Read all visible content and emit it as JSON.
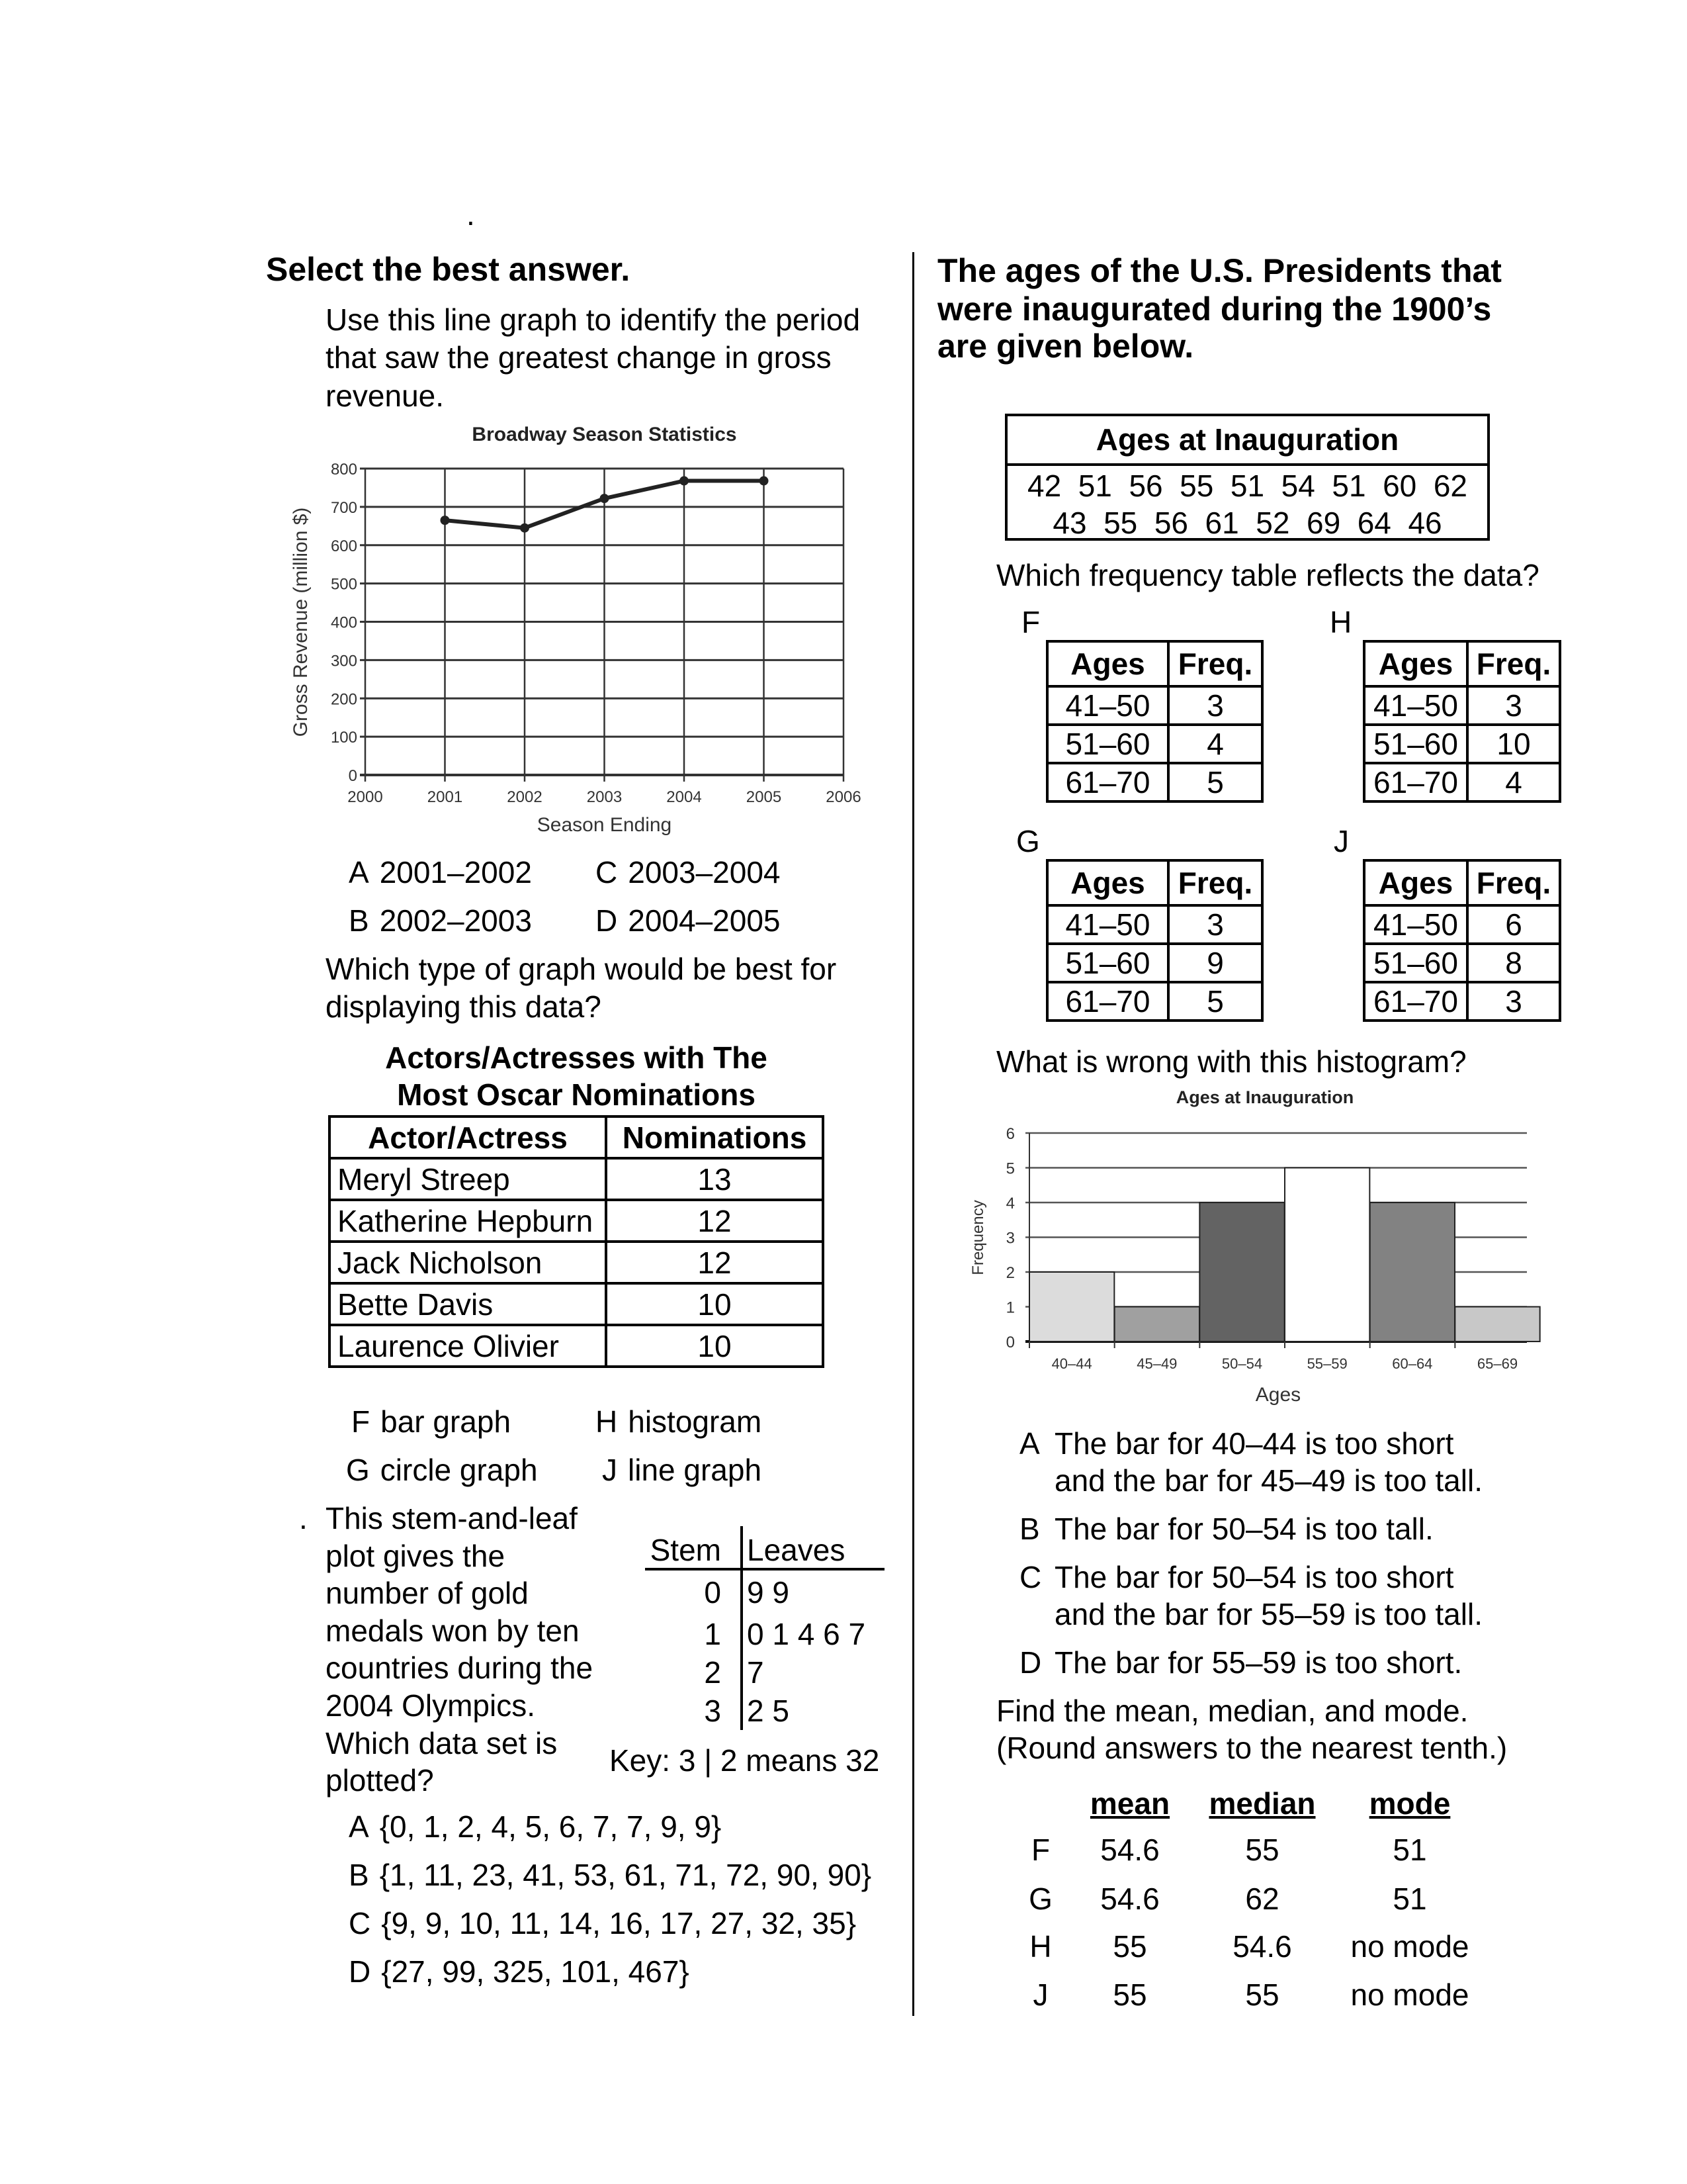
{
  "marker": ".",
  "left": {
    "heading": "Select the best answer.",
    "q1": {
      "lines": [
        "Use this line graph to identify the period",
        "that saw the greatest change in gross",
        "revenue."
      ],
      "options": [
        {
          "letter": "A",
          "text": "2001–2002"
        },
        {
          "letter": "B",
          "text": "2002–2003"
        },
        {
          "letter": "C",
          "text": "2003–2004"
        },
        {
          "letter": "D",
          "text": "2004–2005"
        }
      ]
    },
    "q2": {
      "lines": [
        "Which type of graph would be best for",
        "displaying this data?"
      ],
      "table_title": [
        "Actors/Actresses with The",
        "Most Oscar Nominations"
      ],
      "headers": [
        "Actor/Actress",
        "Nominations"
      ],
      "rows": [
        [
          "Meryl Streep",
          "13"
        ],
        [
          "Katherine Hepburn",
          "12"
        ],
        [
          "Jack Nicholson",
          "12"
        ],
        [
          "Bette Davis",
          "10"
        ],
        [
          "Laurence Olivier",
          "10"
        ]
      ],
      "options": [
        {
          "letter": "F",
          "text": "bar graph"
        },
        {
          "letter": "G",
          "text": "circle graph"
        },
        {
          "letter": "H",
          "text": "histogram"
        },
        {
          "letter": "J",
          "text": "line graph"
        }
      ]
    },
    "q3": {
      "marker": ".",
      "lines": [
        "This stem-and-leaf",
        "plot gives the",
        "number of gold",
        "medals won by ten",
        "countries during the",
        "2004 Olympics.",
        "Which data set is",
        "plotted?"
      ],
      "stem_header": "Stem",
      "leaves_header": "Leaves",
      "rows": [
        {
          "stem": "0",
          "leaves": "9 9"
        },
        {
          "stem": "1",
          "leaves": "0 1 4 6 7"
        },
        {
          "stem": "2",
          "leaves": "7"
        },
        {
          "stem": "3",
          "leaves": "2 5"
        }
      ],
      "key": "Key: 3 | 2 means 32",
      "options": [
        {
          "letter": "A",
          "text": "{0, 1, 2, 4, 5, 6, 7, 7, 9, 9}"
        },
        {
          "letter": "B",
          "text": "{1, 11, 23, 41, 53, 61, 71, 72, 90, 90}"
        },
        {
          "letter": "C",
          "text": "{9, 9, 10, 11, 14, 16, 17, 27, 32, 35}"
        },
        {
          "letter": "D",
          "text": "{27, 99, 325, 101, 467}"
        }
      ]
    }
  },
  "right": {
    "heading": [
      "The ages of the U.S. Presidents that",
      "were inaugurated during the 1900’s",
      "are given below."
    ],
    "ages_table": {
      "title": "Ages at Inauguration",
      "lines": [
        "42  51  56  55  51  54  51  60  62",
        "43  55  56  61  52  69  64  46"
      ]
    },
    "q4": {
      "question": "Which frequency table reflects the data?",
      "tables": [
        {
          "letter": "F",
          "headers": [
            "Ages",
            "Freq."
          ],
          "rows": [
            [
              "41–50",
              "3"
            ],
            [
              "51–60",
              "4"
            ],
            [
              "61–70",
              "5"
            ]
          ]
        },
        {
          "letter": "H",
          "headers": [
            "Ages",
            "Freq."
          ],
          "rows": [
            [
              "41–50",
              "3"
            ],
            [
              "51–60",
              "10"
            ],
            [
              "61–70",
              "4"
            ]
          ]
        },
        {
          "letter": "G",
          "headers": [
            "Ages",
            "Freq."
          ],
          "rows": [
            [
              "41–50",
              "3"
            ],
            [
              "51–60",
              "9"
            ],
            [
              "61–70",
              "5"
            ]
          ]
        },
        {
          "letter": "J",
          "headers": [
            "Ages",
            "Freq."
          ],
          "rows": [
            [
              "41–50",
              "6"
            ],
            [
              "51–60",
              "8"
            ],
            [
              "61–70",
              "3"
            ]
          ]
        }
      ]
    },
    "q5": {
      "question": "What is wrong with this histogram?",
      "options": [
        {
          "letter": "A",
          "lines": [
            "The bar for 40–44 is too short",
            "and the bar for 45–49 is too tall."
          ]
        },
        {
          "letter": "B",
          "lines": [
            "The bar for 50–54 is too tall."
          ]
        },
        {
          "letter": "C",
          "lines": [
            "The bar for 50–54 is too short",
            "and the bar for 55–59 is too tall."
          ]
        },
        {
          "letter": "D",
          "lines": [
            "The bar for 55–59 is too short."
          ]
        }
      ]
    },
    "q6": {
      "lines": [
        "Find the mean, median, and mode.",
        "(Round answers to the nearest tenth.)"
      ],
      "headers": [
        "mean",
        "median",
        "mode"
      ],
      "rows": [
        {
          "letter": "F",
          "values": [
            "54.6",
            "55",
            "51"
          ]
        },
        {
          "letter": "G",
          "values": [
            "54.6",
            "62",
            "51"
          ]
        },
        {
          "letter": "H",
          "values": [
            "55",
            "54.6",
            "no mode"
          ]
        },
        {
          "letter": "J",
          "values": [
            "55",
            "55",
            "no mode"
          ]
        }
      ]
    }
  },
  "chart_data": [
    {
      "type": "line",
      "title": "Broadway Season Statistics",
      "xlabel": "Season Ending",
      "ylabel": "Gross Revenue (million $)",
      "x_ticks": [
        "2000",
        "2001",
        "2002",
        "2003",
        "2004",
        "2005",
        "2006"
      ],
      "y_ticks": [
        "0",
        "100",
        "200",
        "300",
        "400",
        "500",
        "600",
        "700",
        "800"
      ],
      "xlim": [
        2000,
        2006
      ],
      "ylim": [
        0,
        800
      ],
      "grid": true,
      "x": [
        2001,
        2002,
        2003,
        2004,
        2005
      ],
      "y": [
        665,
        645,
        722,
        768,
        768
      ],
      "color": "#222222"
    },
    {
      "type": "bar",
      "title": "Ages at Inauguration",
      "xlabel": "Ages",
      "ylabel": "Frequency",
      "categories": [
        "40–44",
        "45–49",
        "50–54",
        "55–59",
        "60–64",
        "65–69"
      ],
      "values": [
        2,
        1,
        4,
        5,
        4,
        1
      ],
      "colors": [
        "#dcdcdc",
        "#a0a0a0",
        "#636363",
        "#ffffff",
        "#828282",
        "#c8c8c8"
      ],
      "y_ticks": [
        "0",
        "1",
        "2",
        "3",
        "4",
        "5",
        "6"
      ],
      "ylim": [
        0,
        6
      ],
      "grid": true
    }
  ]
}
